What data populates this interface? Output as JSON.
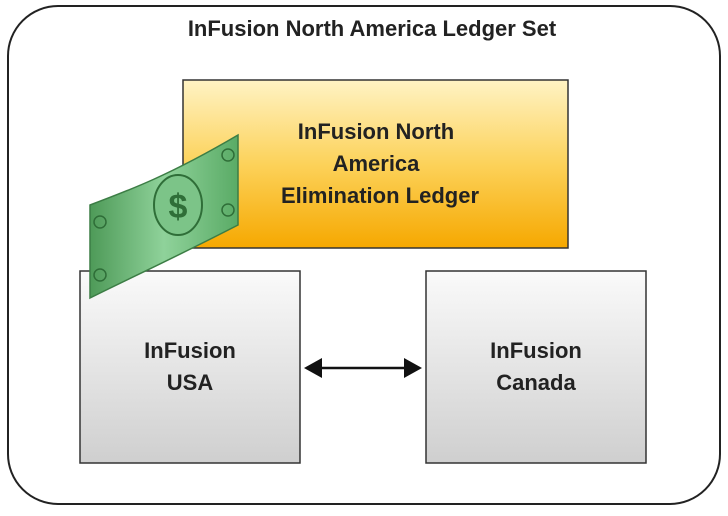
{
  "title": "InFusion North America Ledger Set",
  "nodes": [
    {
      "label": [
        "InFusion North",
        "America",
        "Elimination Ledger"
      ]
    },
    {
      "label": [
        "InFusion",
        "USA"
      ]
    },
    {
      "label": [
        "InFusion",
        "Canada"
      ]
    }
  ]
}
